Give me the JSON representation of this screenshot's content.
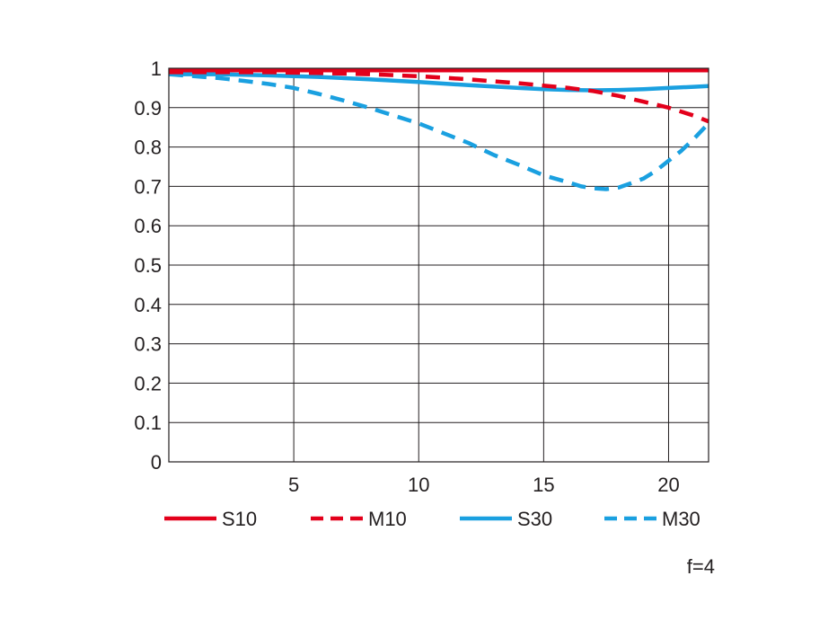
{
  "chart_data": {
    "type": "line",
    "title": "",
    "xlabel": "",
    "ylabel": "",
    "xlim": [
      0,
      21.6
    ],
    "ylim": [
      0,
      1
    ],
    "x_ticks": [
      5,
      10,
      15,
      20
    ],
    "x_tick_labels": [
      "5",
      "10",
      "15",
      "20"
    ],
    "y_ticks": [
      0,
      0.1,
      0.2,
      0.3,
      0.4,
      0.5,
      0.6,
      0.7,
      0.8,
      0.9,
      1
    ],
    "y_tick_labels": [
      "0",
      "0.1",
      "0.2",
      "0.3",
      "0.4",
      "0.5",
      "0.6",
      "0.7",
      "0.8",
      "0.9",
      "1"
    ],
    "grid": true,
    "legend_position": "bottom",
    "note": "f=4",
    "series": [
      {
        "name": "S10",
        "color": "#e3001b",
        "dash": "solid",
        "x": [
          0,
          5,
          10,
          15,
          20,
          21.6
        ],
        "y": [
          0.995,
          0.995,
          0.995,
          0.995,
          0.995,
          0.995
        ]
      },
      {
        "name": "M10",
        "color": "#e3001b",
        "dash": "dashed",
        "x": [
          0,
          2,
          4,
          6,
          8,
          10,
          12,
          14,
          16,
          17,
          18,
          19,
          20,
          21,
          21.6
        ],
        "y": [
          0.99,
          0.99,
          0.99,
          0.988,
          0.985,
          0.98,
          0.972,
          0.962,
          0.95,
          0.942,
          0.93,
          0.915,
          0.9,
          0.88,
          0.865
        ]
      },
      {
        "name": "S30",
        "color": "#1aa0e0",
        "dash": "solid",
        "x": [
          0,
          2,
          4,
          6,
          8,
          10,
          12,
          14,
          15,
          16,
          17,
          18,
          19,
          20,
          21,
          21.6
        ],
        "y": [
          0.985,
          0.985,
          0.982,
          0.978,
          0.972,
          0.965,
          0.957,
          0.95,
          0.947,
          0.945,
          0.944,
          0.945,
          0.947,
          0.95,
          0.953,
          0.955
        ]
      },
      {
        "name": "M30",
        "color": "#1aa0e0",
        "dash": "dashed",
        "x": [
          0,
          1,
          2,
          3,
          4,
          5,
          6,
          7,
          8,
          9,
          10,
          11,
          12,
          13,
          14,
          15,
          16,
          16.5,
          17,
          17.5,
          18,
          18.5,
          19,
          19.5,
          20,
          20.5,
          21,
          21.6
        ],
        "y": [
          0.985,
          0.98,
          0.975,
          0.968,
          0.96,
          0.95,
          0.935,
          0.918,
          0.9,
          0.88,
          0.86,
          0.835,
          0.81,
          0.78,
          0.755,
          0.728,
          0.71,
          0.7,
          0.695,
          0.693,
          0.697,
          0.708,
          0.72,
          0.74,
          0.765,
          0.79,
          0.82,
          0.86
        ]
      }
    ]
  }
}
